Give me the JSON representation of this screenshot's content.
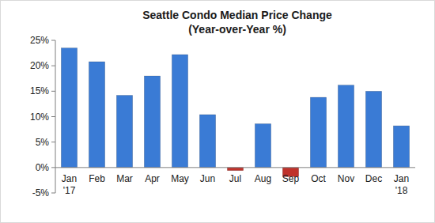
{
  "chart_data": {
    "type": "bar",
    "title": "Seattle Condo Median Price Change",
    "subtitle": "(Year-over-Year %)",
    "categories": [
      "Jan '17",
      "Feb",
      "Mar",
      "Apr",
      "May",
      "Jun",
      "Jul",
      "Aug",
      "Sep",
      "Oct",
      "Nov",
      "Dec",
      "Jan '18"
    ],
    "values": [
      23.5,
      20.8,
      14.2,
      18,
      22.2,
      10.4,
      -0.6,
      8.6,
      -1.8,
      13.8,
      16.2,
      15,
      8.2
    ],
    "colors": [
      "#3a7bd5",
      "#3a7bd5",
      "#3a7bd5",
      "#3a7bd5",
      "#3a7bd5",
      "#3a7bd5",
      "#c0322b",
      "#3a7bd5",
      "#c0322b",
      "#3a7bd5",
      "#3a7bd5",
      "#3a7bd5",
      "#3a7bd5"
    ],
    "ylim": [
      -5,
      25
    ],
    "yticks": [
      {
        "value": -5,
        "label": "-5%"
      },
      {
        "value": 0,
        "label": "0%"
      },
      {
        "value": 5,
        "label": "5%"
      },
      {
        "value": 10,
        "label": "10%"
      },
      {
        "value": 15,
        "label": "15%"
      },
      {
        "value": 20,
        "label": "20%"
      },
      {
        "value": 25,
        "label": "25%"
      }
    ],
    "grid": false
  }
}
